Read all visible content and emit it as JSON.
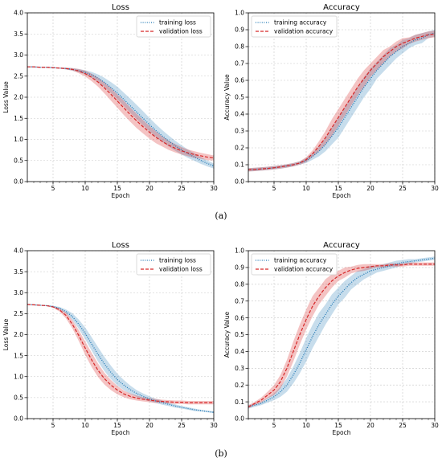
{
  "captions": [
    "(a)",
    "(b)"
  ],
  "chart_data": [
    {
      "type": "line",
      "title": "Loss",
      "xlabel": "Epoch",
      "ylabel": "Loss Value",
      "xlim": [
        1,
        30
      ],
      "ylim": [
        0,
        4.0
      ],
      "xticks": [
        5,
        10,
        15,
        20,
        25,
        30
      ],
      "yticks": [
        0,
        0.5,
        1.0,
        1.5,
        2.0,
        2.5,
        3.0,
        3.5,
        4.0
      ],
      "grid": true,
      "legend": "top-right",
      "x": [
        1,
        2,
        3,
        4,
        5,
        6,
        7,
        8,
        9,
        10,
        11,
        12,
        13,
        14,
        15,
        16,
        17,
        18,
        19,
        20,
        21,
        22,
        23,
        24,
        25,
        26,
        27,
        28,
        29,
        30
      ],
      "series": [
        {
          "name": "training loss",
          "color": "#1f77b4",
          "style": "dotted",
          "values": [
            2.72,
            2.72,
            2.71,
            2.71,
            2.7,
            2.69,
            2.68,
            2.66,
            2.63,
            2.59,
            2.53,
            2.45,
            2.35,
            2.23,
            2.1,
            1.95,
            1.8,
            1.65,
            1.5,
            1.35,
            1.21,
            1.08,
            0.96,
            0.85,
            0.75,
            0.66,
            0.58,
            0.5,
            0.43,
            0.37
          ],
          "band": [
            0.01,
            0.01,
            0.01,
            0.01,
            0.01,
            0.01,
            0.02,
            0.03,
            0.04,
            0.05,
            0.07,
            0.09,
            0.11,
            0.13,
            0.15,
            0.16,
            0.17,
            0.17,
            0.17,
            0.16,
            0.15,
            0.14,
            0.13,
            0.12,
            0.11,
            0.1,
            0.09,
            0.08,
            0.07,
            0.06
          ]
        },
        {
          "name": "validation loss",
          "color": "#d62728",
          "style": "dashed",
          "values": [
            2.72,
            2.72,
            2.71,
            2.71,
            2.7,
            2.69,
            2.68,
            2.66,
            2.62,
            2.56,
            2.47,
            2.36,
            2.22,
            2.07,
            1.91,
            1.75,
            1.59,
            1.44,
            1.3,
            1.17,
            1.05,
            0.95,
            0.86,
            0.79,
            0.73,
            0.68,
            0.64,
            0.61,
            0.58,
            0.56
          ],
          "band": [
            0.01,
            0.01,
            0.01,
            0.01,
            0.01,
            0.01,
            0.02,
            0.03,
            0.05,
            0.07,
            0.09,
            0.11,
            0.13,
            0.15,
            0.16,
            0.17,
            0.17,
            0.17,
            0.16,
            0.15,
            0.14,
            0.12,
            0.11,
            0.1,
            0.09,
            0.08,
            0.08,
            0.07,
            0.07,
            0.06
          ]
        }
      ]
    },
    {
      "type": "line",
      "title": "Accuracy",
      "xlabel": "Epoch",
      "ylabel": "Accuracy Value",
      "xlim": [
        1,
        30
      ],
      "ylim": [
        0,
        1.0
      ],
      "xticks": [
        5,
        10,
        15,
        20,
        25,
        30
      ],
      "yticks": [
        0.0,
        0.1,
        0.2,
        0.3,
        0.4,
        0.5,
        0.6,
        0.7,
        0.8,
        0.9,
        1.0
      ],
      "grid": true,
      "legend": "top-left",
      "x": [
        1,
        2,
        3,
        4,
        5,
        6,
        7,
        8,
        9,
        10,
        11,
        12,
        13,
        14,
        15,
        16,
        17,
        18,
        19,
        20,
        21,
        22,
        23,
        24,
        25,
        26,
        27,
        28,
        29,
        30
      ],
      "series": [
        {
          "name": "training accuracy",
          "color": "#1f77b4",
          "style": "dotted",
          "values": [
            0.07,
            0.072,
            0.075,
            0.078,
            0.082,
            0.087,
            0.093,
            0.1,
            0.11,
            0.125,
            0.15,
            0.18,
            0.22,
            0.27,
            0.32,
            0.38,
            0.44,
            0.5,
            0.56,
            0.61,
            0.66,
            0.7,
            0.74,
            0.77,
            0.8,
            0.82,
            0.84,
            0.85,
            0.87,
            0.88
          ],
          "band": [
            0.01,
            0.01,
            0.01,
            0.01,
            0.01,
            0.01,
            0.01,
            0.01,
            0.01,
            0.015,
            0.02,
            0.03,
            0.04,
            0.05,
            0.06,
            0.06,
            0.06,
            0.06,
            0.06,
            0.06,
            0.05,
            0.05,
            0.05,
            0.04,
            0.04,
            0.03,
            0.03,
            0.03,
            0.02,
            0.02
          ]
        },
        {
          "name": "validation accuracy",
          "color": "#d62728",
          "style": "dashed",
          "values": [
            0.07,
            0.072,
            0.075,
            0.078,
            0.082,
            0.087,
            0.093,
            0.1,
            0.11,
            0.13,
            0.165,
            0.21,
            0.26,
            0.32,
            0.38,
            0.44,
            0.5,
            0.56,
            0.61,
            0.66,
            0.7,
            0.74,
            0.77,
            0.8,
            0.82,
            0.835,
            0.85,
            0.86,
            0.87,
            0.875
          ],
          "band": [
            0.01,
            0.01,
            0.01,
            0.01,
            0.01,
            0.01,
            0.01,
            0.01,
            0.01,
            0.015,
            0.02,
            0.03,
            0.04,
            0.05,
            0.05,
            0.05,
            0.05,
            0.05,
            0.05,
            0.04,
            0.04,
            0.04,
            0.03,
            0.03,
            0.03,
            0.02,
            0.02,
            0.02,
            0.02,
            0.02
          ]
        }
      ]
    },
    {
      "type": "line",
      "title": "Loss",
      "xlabel": "Epoch",
      "ylabel": "Loss Value",
      "xlim": [
        1,
        30
      ],
      "ylim": [
        0,
        4.0
      ],
      "xticks": [
        5,
        10,
        15,
        20,
        25,
        30
      ],
      "yticks": [
        0,
        0.5,
        1.0,
        1.5,
        2.0,
        2.5,
        3.0,
        3.5,
        4.0
      ],
      "grid": true,
      "legend": "top-right",
      "x": [
        1,
        2,
        3,
        4,
        5,
        6,
        7,
        8,
        9,
        10,
        11,
        12,
        13,
        14,
        15,
        16,
        17,
        18,
        19,
        20,
        21,
        22,
        23,
        24,
        25,
        26,
        27,
        28,
        29,
        30
      ],
      "series": [
        {
          "name": "training loss",
          "color": "#1f77b4",
          "style": "dotted",
          "values": [
            2.72,
            2.71,
            2.7,
            2.69,
            2.67,
            2.63,
            2.55,
            2.43,
            2.25,
            2.03,
            1.78,
            1.53,
            1.3,
            1.1,
            0.93,
            0.8,
            0.69,
            0.6,
            0.53,
            0.47,
            0.42,
            0.38,
            0.34,
            0.3,
            0.27,
            0.24,
            0.21,
            0.19,
            0.17,
            0.15
          ],
          "band": [
            0.01,
            0.01,
            0.01,
            0.01,
            0.02,
            0.03,
            0.05,
            0.08,
            0.11,
            0.14,
            0.16,
            0.17,
            0.17,
            0.16,
            0.14,
            0.12,
            0.1,
            0.08,
            0.07,
            0.06,
            0.05,
            0.05,
            0.04,
            0.04,
            0.03,
            0.03,
            0.03,
            0.02,
            0.02,
            0.02
          ]
        },
        {
          "name": "validation loss",
          "color": "#d62728",
          "style": "dashed",
          "values": [
            2.72,
            2.71,
            2.7,
            2.69,
            2.66,
            2.59,
            2.46,
            2.25,
            1.98,
            1.68,
            1.4,
            1.15,
            0.95,
            0.8,
            0.68,
            0.59,
            0.53,
            0.49,
            0.46,
            0.44,
            0.42,
            0.41,
            0.4,
            0.39,
            0.39,
            0.38,
            0.38,
            0.38,
            0.38,
            0.38
          ],
          "band": [
            0.01,
            0.01,
            0.01,
            0.01,
            0.02,
            0.04,
            0.07,
            0.1,
            0.13,
            0.16,
            0.17,
            0.16,
            0.14,
            0.12,
            0.1,
            0.08,
            0.07,
            0.06,
            0.05,
            0.05,
            0.05,
            0.04,
            0.04,
            0.04,
            0.04,
            0.04,
            0.04,
            0.04,
            0.04,
            0.04
          ]
        }
      ]
    },
    {
      "type": "line",
      "title": "Accuracy",
      "xlabel": "Epoch",
      "ylabel": "Accuracy Value",
      "xlim": [
        1,
        30
      ],
      "ylim": [
        0,
        1.0
      ],
      "xticks": [
        5,
        10,
        15,
        20,
        25,
        30
      ],
      "yticks": [
        0.0,
        0.1,
        0.2,
        0.3,
        0.4,
        0.5,
        0.6,
        0.7,
        0.8,
        0.9,
        1.0
      ],
      "grid": true,
      "legend": "top-left",
      "x": [
        1,
        2,
        3,
        4,
        5,
        6,
        7,
        8,
        9,
        10,
        11,
        12,
        13,
        14,
        15,
        16,
        17,
        18,
        19,
        20,
        21,
        22,
        23,
        24,
        25,
        26,
        27,
        28,
        29,
        30
      ],
      "series": [
        {
          "name": "training accuracy",
          "color": "#1f77b4",
          "style": "dotted",
          "values": [
            0.07,
            0.08,
            0.09,
            0.11,
            0.13,
            0.16,
            0.2,
            0.26,
            0.33,
            0.41,
            0.49,
            0.56,
            0.62,
            0.68,
            0.73,
            0.77,
            0.81,
            0.84,
            0.86,
            0.88,
            0.89,
            0.9,
            0.91,
            0.92,
            0.93,
            0.935,
            0.94,
            0.945,
            0.95,
            0.955
          ],
          "band": [
            0.01,
            0.01,
            0.01,
            0.015,
            0.02,
            0.03,
            0.04,
            0.05,
            0.06,
            0.07,
            0.07,
            0.07,
            0.06,
            0.06,
            0.05,
            0.05,
            0.04,
            0.04,
            0.03,
            0.03,
            0.02,
            0.02,
            0.02,
            0.02,
            0.015,
            0.015,
            0.01,
            0.01,
            0.01,
            0.01
          ]
        },
        {
          "name": "validation accuracy",
          "color": "#d62728",
          "style": "dashed",
          "values": [
            0.07,
            0.09,
            0.11,
            0.14,
            0.17,
            0.22,
            0.3,
            0.4,
            0.5,
            0.59,
            0.67,
            0.73,
            0.78,
            0.82,
            0.85,
            0.87,
            0.885,
            0.895,
            0.9,
            0.905,
            0.91,
            0.91,
            0.915,
            0.915,
            0.915,
            0.92,
            0.92,
            0.92,
            0.92,
            0.92
          ],
          "band": [
            0.01,
            0.01,
            0.015,
            0.02,
            0.03,
            0.04,
            0.05,
            0.06,
            0.06,
            0.06,
            0.06,
            0.05,
            0.05,
            0.04,
            0.03,
            0.03,
            0.02,
            0.02,
            0.02,
            0.015,
            0.01,
            0.01,
            0.01,
            0.01,
            0.01,
            0.01,
            0.01,
            0.01,
            0.01,
            0.01
          ]
        }
      ]
    }
  ]
}
